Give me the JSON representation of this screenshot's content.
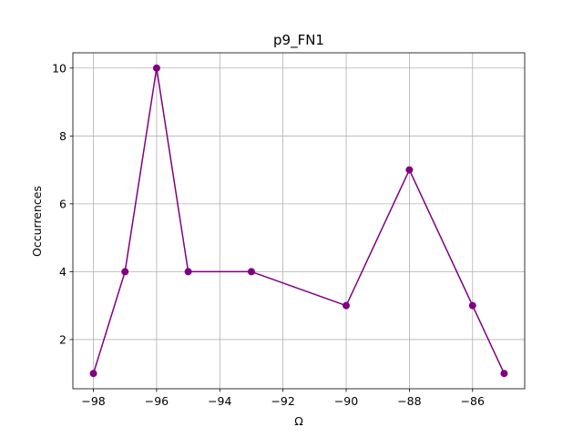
{
  "chart_data": {
    "type": "line",
    "title": "p9_FN1",
    "xlabel": "Ω",
    "ylabel": "Occurrences",
    "x": [
      -98,
      -97,
      -96,
      -95,
      -93,
      -90,
      -88,
      -86,
      -85
    ],
    "series": [
      {
        "values": [
          1,
          4,
          10,
          4,
          4,
          3,
          7,
          3,
          1
        ],
        "color": "#800080",
        "marker": "circle"
      }
    ],
    "xlim": [
      -98.65,
      -84.35
    ],
    "ylim": [
      0.55,
      10.45
    ],
    "xticks": [
      -98,
      -96,
      -94,
      -92,
      -90,
      -88,
      -86
    ],
    "yticks": [
      2,
      4,
      6,
      8,
      10
    ],
    "grid": true,
    "legend": "none"
  }
}
